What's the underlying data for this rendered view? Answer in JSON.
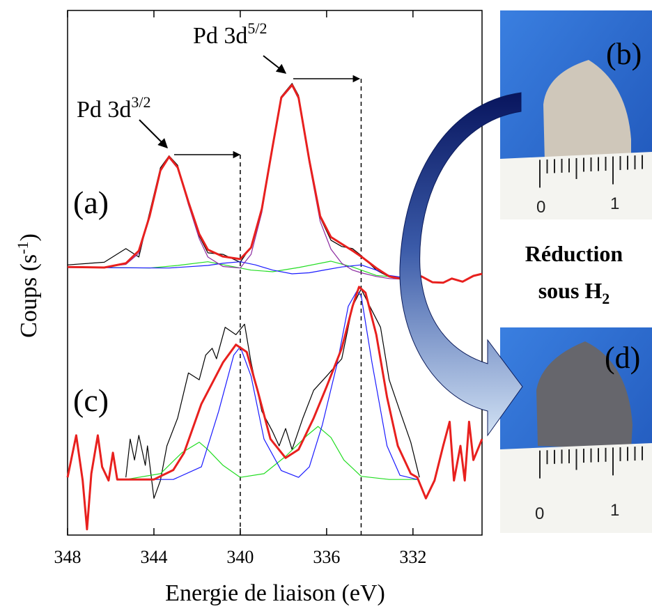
{
  "chart_data": {
    "type": "line",
    "xlabel": "Energie de liaison (eV)",
    "ylabel_parts": [
      "Coups (s",
      "-1",
      ")"
    ],
    "xlim": [
      348,
      328.8
    ],
    "ylim": [
      0,
      100
    ],
    "xticks": [
      348,
      344,
      340,
      336,
      332
    ],
    "reference_lines": [
      340.0,
      334.4
    ],
    "peak_labels": [
      [
        "Pd 3d",
        "3/2"
      ],
      [
        "Pd 3d",
        "5/2"
      ]
    ],
    "spectrum_labels": [
      "(a)",
      "(c)"
    ],
    "series": [
      {
        "color": "#000000",
        "x": [
          348,
          346.3,
          345.3,
          344.7,
          344.2,
          343.7,
          343.3,
          342.9,
          342.4,
          341.9,
          341.5,
          340.8,
          340,
          339.5,
          339,
          338.5,
          338.1,
          337.6,
          337.3,
          336.8,
          336.3,
          335.8,
          335.3,
          334.8,
          334.4,
          333.7,
          333.1,
          332.6,
          332.1
        ],
        "values": [
          51.5,
          52.0,
          54.6,
          53.0,
          61.5,
          70.0,
          72.3,
          70.5,
          63.0,
          57.0,
          53.8,
          53.5,
          52.0,
          55.0,
          62.5,
          74.5,
          83.6,
          86.1,
          83.8,
          71.0,
          60.5,
          56.2,
          55.0,
          54.6,
          53.3,
          50.5,
          49.2,
          48.9,
          48.6
        ]
      },
      {
        "color": "#22dd22",
        "x": [
          348,
          344.2,
          342.9,
          341.5,
          340.5,
          339.5,
          338.5,
          337.3,
          335.8,
          334.8,
          333.7,
          332.1
        ],
        "values": [
          51.1,
          50.9,
          51.4,
          52.1,
          51.3,
          50.5,
          50.2,
          51.0,
          52.2,
          51.1,
          49.5,
          48.9
        ]
      },
      {
        "color": "#1a1aff",
        "x": [
          348,
          343.3,
          341.5,
          340.8,
          340,
          339.3,
          338.5,
          337.6,
          336.8,
          336,
          335.3,
          334.4,
          333.7,
          333.1,
          332.1
        ],
        "values": [
          51.0,
          50.9,
          51.4,
          51.8,
          52.1,
          51.5,
          50.5,
          49.8,
          50.0,
          50.6,
          51.1,
          51.5,
          50.5,
          49.5,
          48.9
        ]
      },
      {
        "color": "#8b2aa0",
        "x": [
          348,
          346.3,
          345.3,
          344.7,
          344.2,
          343.7,
          343.3,
          342.9,
          342.4,
          341.9,
          341.5,
          340.8,
          340,
          339.5,
          339,
          338.5,
          338.1,
          337.6,
          337.3,
          336.8,
          336.3,
          335.8,
          335.3,
          334.8,
          334.4,
          333.7,
          333.1,
          332.6,
          332.1
        ],
        "values": [
          51.1,
          51.1,
          51.6,
          53.7,
          60.5,
          69.3,
          71.9,
          69.9,
          63.0,
          56.5,
          53.0,
          51.2,
          50.9,
          53.5,
          61.5,
          73.8,
          83.2,
          85.6,
          83.1,
          70.8,
          59.8,
          54.5,
          51.8,
          50.5,
          50.0,
          49.3,
          48.9,
          48.8,
          48.6
        ]
      },
      {
        "color": "#e8201e",
        "x": [
          348,
          346.3,
          345.3,
          344.7,
          344.2,
          343.7,
          343.3,
          342.9,
          342.4,
          341.9,
          341.5,
          340.8,
          340,
          339.5,
          339,
          338.5,
          338.1,
          337.6,
          337.3,
          336.8,
          336.3,
          335.8,
          335.3,
          334.8,
          334.4,
          333.7,
          333.1,
          332.6,
          332.1,
          331.6,
          331.1,
          330.6,
          330.2,
          329.7,
          329.2,
          328.8
        ],
        "values": [
          51.1,
          51.0,
          51.8,
          54.2,
          60.8,
          69.5,
          72.1,
          70.1,
          63.5,
          57.4,
          54.4,
          53.1,
          52.6,
          54.8,
          62.2,
          74.1,
          83.4,
          85.8,
          83.4,
          71.4,
          60.8,
          56.8,
          55.5,
          54.2,
          53.1,
          50.9,
          49.3,
          48.9,
          48.6,
          49.3,
          48.2,
          48.1,
          48.9,
          48.3,
          49.4,
          49.8
        ]
      },
      {
        "color": "#000000",
        "x": [
          345.3,
          345.1,
          344.9,
          344.7,
          344.4,
          344.3,
          344.0,
          343.7,
          343.4,
          342.9,
          342.4,
          341.9,
          341.6,
          341.3,
          341.1,
          340.7,
          340.2,
          339.8,
          339.5,
          339.0,
          338.5,
          338.2,
          337.9,
          337.6,
          337.1,
          336.6,
          336.0,
          335.3,
          334.8,
          334.4,
          334.0,
          333.5,
          333.1,
          332.6,
          332.1,
          331.7
        ],
        "values": [
          11.0,
          18.3,
          14.3,
          19.0,
          13.3,
          17.0,
          7.0,
          10.4,
          17.0,
          22.3,
          30.9,
          29.6,
          34.3,
          35.6,
          33.6,
          39.6,
          38.2,
          40.2,
          32.9,
          23.6,
          19.7,
          17.0,
          20.3,
          16.3,
          22.3,
          27.6,
          30.3,
          33.6,
          43.6,
          46.9,
          43.6,
          39.6,
          29.6,
          23.6,
          17.7,
          11.0
        ]
      },
      {
        "color": "#22dd22",
        "x": [
          345.3,
          343.7,
          342.7,
          341.9,
          341.5,
          340.8,
          340.0,
          338.9,
          337.9,
          336.9,
          336.4,
          335.8,
          335.2,
          334.4,
          333.1,
          331.8
        ],
        "values": [
          10.6,
          11.7,
          15.7,
          17.7,
          16.3,
          13.3,
          11.0,
          11.7,
          15.0,
          19.0,
          20.7,
          18.6,
          14.3,
          11.2,
          10.6,
          10.6
        ]
      },
      {
        "color": "#1a1aff",
        "x": [
          345.3,
          343.1,
          341.8,
          341.0,
          340.3,
          340.0,
          339.5,
          338.9,
          338.1,
          337.3,
          336.8,
          336.2,
          335.5,
          335.0,
          334.6,
          334.4,
          333.9,
          333.2,
          332.6,
          331.8
        ],
        "values": [
          10.6,
          10.6,
          13.0,
          23.6,
          34.3,
          35.9,
          30.3,
          18.3,
          12.3,
          11.0,
          13.0,
          21.0,
          32.9,
          43.6,
          46.5,
          45.6,
          32.9,
          17.0,
          11.4,
          10.6
        ]
      },
      {
        "color": "#e8201e",
        "x": [
          348.0,
          347.6,
          347.3,
          347.1,
          346.9,
          346.6,
          346.4,
          346.1,
          345.9,
          345.7,
          345.3,
          344.0,
          343.1,
          342.6,
          341.8,
          340.8,
          340.2,
          339.7,
          339.2,
          338.6,
          337.9,
          337.3,
          336.6,
          336.0,
          335.3,
          334.8,
          334.5,
          334.2,
          333.7,
          333.2,
          332.7,
          332.1,
          331.8,
          331.4,
          331.0,
          330.6,
          330.3,
          330.1,
          329.8,
          329.6,
          329.4,
          329.2,
          328.8
        ],
        "values": [
          11.0,
          19.0,
          10.4,
          1.1,
          11.7,
          19.0,
          13.0,
          10.4,
          15.7,
          10.6,
          10.6,
          10.6,
          12.4,
          15.7,
          25.0,
          32.9,
          36.3,
          34.9,
          27.6,
          18.3,
          14.7,
          16.3,
          22.3,
          28.3,
          35.6,
          43.6,
          47.3,
          46.2,
          38.2,
          26.3,
          17.0,
          11.7,
          11.0,
          7.0,
          10.4,
          17.0,
          21.6,
          10.4,
          17.0,
          10.4,
          21.6,
          14.3,
          18.3
        ]
      }
    ]
  },
  "photos": [
    {
      "label": "(b)",
      "ruler_labels": [
        "0",
        "1"
      ]
    },
    {
      "label": "(d)",
      "ruler_labels": [
        "0",
        "1"
      ]
    }
  ],
  "caption_parts": [
    "Réduction",
    "sous H",
    "2"
  ]
}
